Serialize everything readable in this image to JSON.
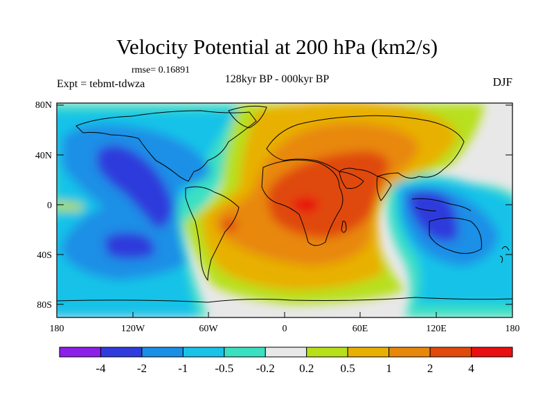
{
  "title": "Velocity Potential at 200 hPa (km2/s)",
  "rmse_label": "rmse= 0.16891",
  "experiment_label": "Expt = tebmt-tdwza",
  "comparison_label": "128kyr BP - 000kyr BP",
  "season_label": "DJF",
  "lat_ticks": [
    "80N",
    "40N",
    "0",
    "40S",
    "80S"
  ],
  "lon_ticks": [
    "180",
    "120W",
    "60W",
    "0",
    "60E",
    "120E",
    "180"
  ],
  "colorbar": {
    "colors": [
      "#8c1fe8",
      "#2f3bdc",
      "#1a8fe6",
      "#19c2e8",
      "#3be0c2",
      "#e8e8e8",
      "#b8e01a",
      "#e8b000",
      "#e8880a",
      "#e04a0a",
      "#e81010"
    ],
    "labels": [
      "-4",
      "-2",
      "-1",
      "-0.5",
      "-0.2",
      "0.2",
      "0.5",
      "1",
      "2",
      "4"
    ]
  }
}
